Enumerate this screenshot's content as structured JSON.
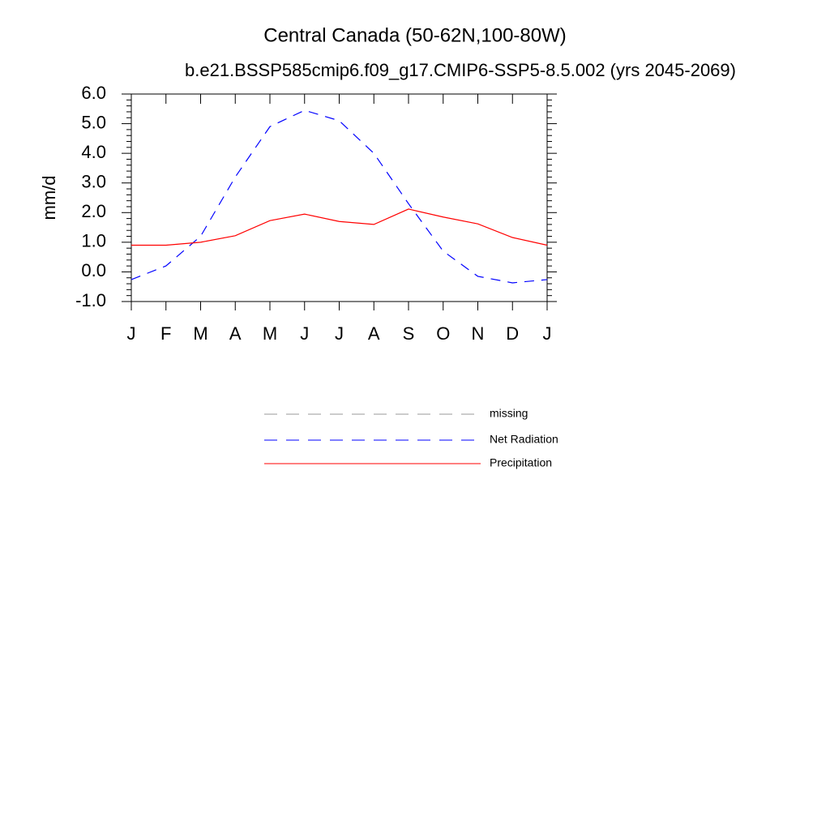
{
  "chart_data": {
    "type": "line",
    "title": "Central Canada (50-62N,100-80W)",
    "subtitle": "b.e21.BSSP585cmip6.f09_g17.CMIP6-SSP5-8.5.002 (yrs 2045-2069)",
    "y_label": "mm/d",
    "categories": [
      "J",
      "F",
      "M",
      "A",
      "M",
      "J",
      "J",
      "A",
      "S",
      "O",
      "N",
      "D",
      "J"
    ],
    "series": [
      {
        "name": "missing",
        "color": "#999999",
        "dash": true,
        "values": [
          null,
          null,
          null,
          null,
          null,
          null,
          null,
          null,
          null,
          null,
          null,
          null,
          null
        ]
      },
      {
        "name": "Net Radiation",
        "color": "#0000ff",
        "dash": true,
        "values": [
          -0.26,
          0.2,
          1.2,
          3.2,
          4.9,
          5.45,
          5.1,
          4.0,
          2.3,
          0.7,
          -0.15,
          -0.37,
          -0.26
        ]
      },
      {
        "name": "Precipitation",
        "color": "#ff0000",
        "dash": false,
        "values": [
          0.9,
          0.9,
          1.0,
          1.22,
          1.73,
          1.95,
          1.7,
          1.6,
          2.12,
          1.85,
          1.62,
          1.16,
          0.9
        ]
      }
    ],
    "ylim": [
      -1,
      6
    ],
    "yticks": [
      {
        "value": -1,
        "label": "-1.0"
      },
      {
        "value": 0,
        "label": "0.0"
      },
      {
        "value": 1,
        "label": "1.0"
      },
      {
        "value": 2,
        "label": "2.0"
      },
      {
        "value": 3,
        "label": "3.0"
      },
      {
        "value": 4,
        "label": "4.0"
      },
      {
        "value": 5,
        "label": "5.0"
      },
      {
        "value": 6,
        "label": "6.0"
      }
    ]
  }
}
